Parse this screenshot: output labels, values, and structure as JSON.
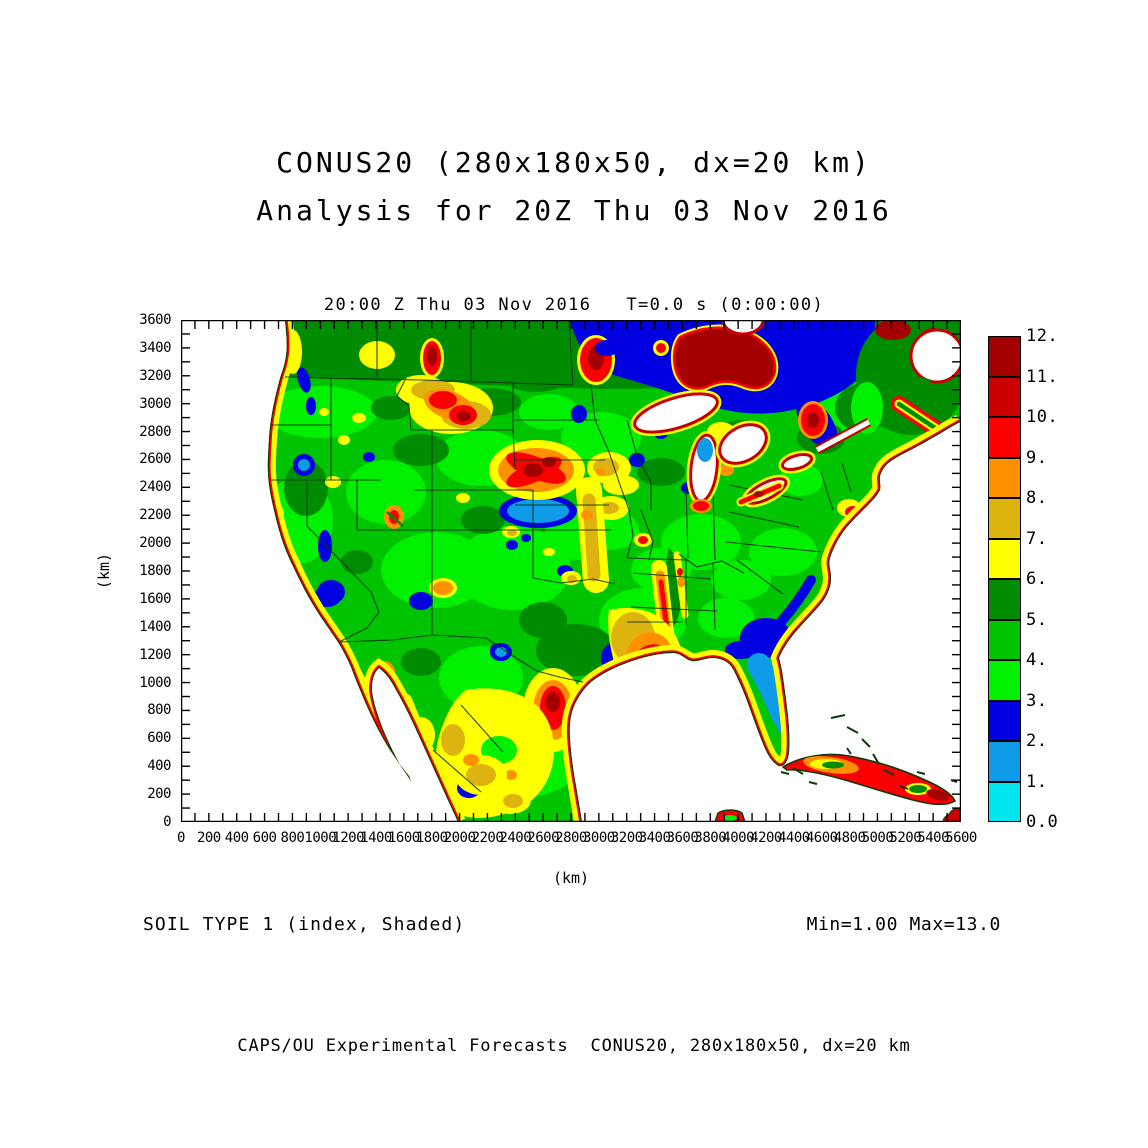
{
  "page": {
    "title_line1": "CONUS20 (280x180x50, dx=20 km)",
    "title_line2": "Analysis for 20Z Thu 03 Nov 2016",
    "footer": "CAPS/OU Experimental Forecasts  CONUS20, 280x180x50, dx=20 km"
  },
  "plot": {
    "header": "20:00 Z Thu 03 Nov 2016   T=0.0 s (0:00:00)",
    "x_axis_unit": "(km)",
    "y_axis_unit": "(km)",
    "caption_left": "SOIL TYPE 1 (index, Shaded)",
    "caption_right": "Min=1.00 Max=13.0"
  },
  "chart_data": {
    "type": "heatmap",
    "title": "CONUS20 (280x180x50, dx=20 km) Analysis for 20Z Thu 03 Nov 2016",
    "field": "SOIL TYPE 1 (index, Shaded)",
    "valid_time": "20:00 Z Thu 03 Nov 2016",
    "forecast_time": "T=0.0 s (0:00:00)",
    "min_label": "Min=1.00",
    "max_label": "Max=13.0",
    "xlabel": "(km)",
    "ylabel": "(km)",
    "x_range_km": [
      0,
      5600
    ],
    "y_range_km": [
      0,
      3600
    ],
    "x_tick_step_km": 200,
    "y_tick_step_km": 200,
    "minor_tick_step_km": 100,
    "grid": false,
    "legend_position": "right",
    "x_ticks": [
      "0",
      "200",
      "400",
      "600",
      "800",
      "1000",
      "1200",
      "1400",
      "1600",
      "1800",
      "2000",
      "2200",
      "2400",
      "2600",
      "2800",
      "3000",
      "3200",
      "3400",
      "3600",
      "3800",
      "4000",
      "4200",
      "4400",
      "4600",
      "4800",
      "5000",
      "5200",
      "5400",
      "5600"
    ],
    "y_ticks": [
      "0",
      "200",
      "400",
      "600",
      "800",
      "1000",
      "1200",
      "1400",
      "1600",
      "1800",
      "2000",
      "2200",
      "2400",
      "2600",
      "2800",
      "3000",
      "3200",
      "3400",
      "3600"
    ],
    "colorbar": {
      "labels_top_to_bottom": [
        "12.",
        "11.",
        "10.",
        "9.",
        "8.",
        "7.",
        "6.",
        "5.",
        "4.",
        "3.",
        "2.",
        "1.",
        "0.0"
      ],
      "colors_top_to_bottom": [
        "#a50000",
        "#cb0000",
        "#fa0000",
        "#ff9100",
        "#ddb310",
        "#ffff00",
        "#008c00",
        "#00c400",
        "#00f000",
        "#0000e0",
        "#0f9be8",
        "#00e5ee"
      ]
    },
    "visual_summary": "Filled-contour soil-type index map over CONUS: greens (3-6) dominate the interior; dark green across southern Canada; blues (0-3) over NE Canada, SE coastal plain, Florida and Nebraska Sand Hills; yellow-to-dark-red (6-12) bands along coastlines, Cuba, central Texas, Montana and the northern plains."
  }
}
